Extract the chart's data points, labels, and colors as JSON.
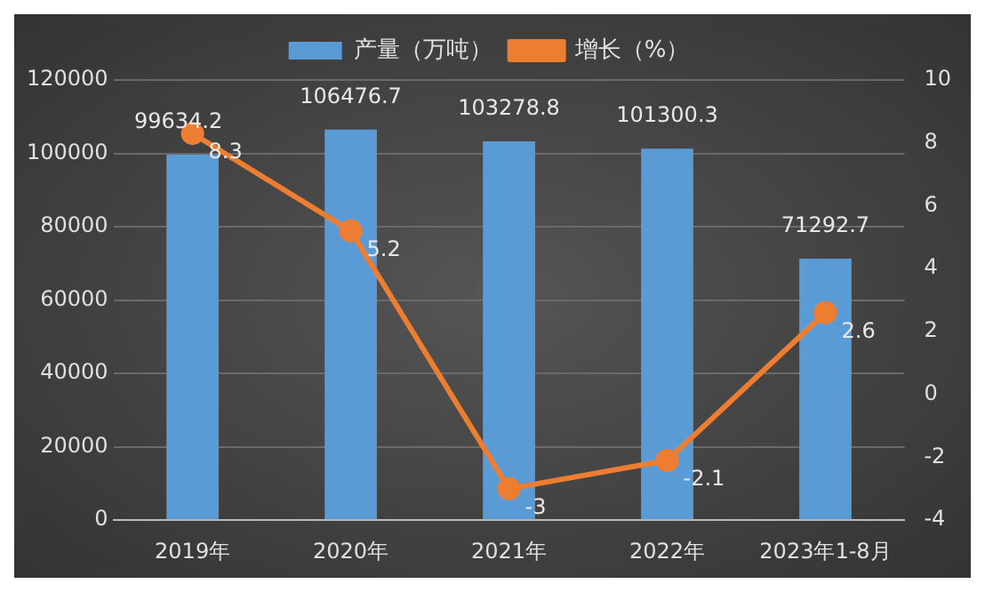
{
  "chart_data": {
    "type": "bar",
    "categories": [
      "2019年",
      "2020年",
      "2021年",
      "2022年",
      "2023年1-8月"
    ],
    "series": [
      {
        "name": "产量（万吨）",
        "color": "#5b9bd5",
        "values": [
          99634.2,
          106476.7,
          103278.8,
          101300.3,
          71292.7
        ]
      },
      {
        "name": "增长（%）",
        "type": "line",
        "axis": "y2",
        "color": "#ed7d31",
        "values": [
          8.3,
          5.2,
          -3,
          -2.1,
          2.6
        ]
      }
    ],
    "ylim": [
      0,
      120000
    ],
    "yticks": [
      0,
      20000,
      40000,
      60000,
      80000,
      100000,
      120000
    ],
    "y2lim": [
      -4,
      10
    ],
    "y2ticks": [
      -4,
      -2,
      0,
      2,
      4,
      6,
      8,
      10
    ],
    "data_labels": true,
    "grid": "y",
    "legend": "top",
    "marker": "circle"
  }
}
